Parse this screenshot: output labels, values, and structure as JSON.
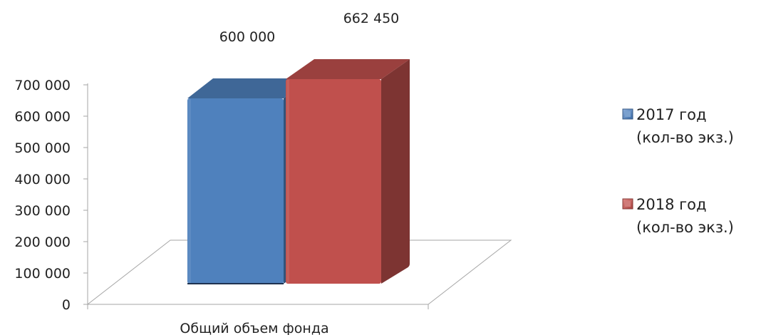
{
  "chart_data": {
    "type": "bar",
    "categories": [
      "Общий объем фонда"
    ],
    "series": [
      {
        "name": "2017 год (кол-во экз.)",
        "legend_lines": [
          "2017 год",
          "(кол-во экз.)"
        ],
        "values": [
          600000
        ],
        "color": "#4F81BD",
        "label": "600 000"
      },
      {
        "name": "2018 год (кол-во экз.)",
        "legend_lines": [
          "2018 год",
          "(кол-во экз.)"
        ],
        "values": [
          662450
        ],
        "color": "#C0504D",
        "label": "662 450"
      }
    ],
    "ylim": [
      0,
      700000
    ],
    "yticks": [
      0,
      100000,
      200000,
      300000,
      400000,
      500000,
      600000,
      700000
    ],
    "ytick_labels": [
      "0",
      "100 000",
      "200 000",
      "300 000",
      "400 000",
      "500 000",
      "600 000",
      "700 000"
    ],
    "title": "",
    "xlabel": "",
    "ylabel": "",
    "grid": false,
    "legend": "right",
    "style": "3d-clustered-column"
  }
}
